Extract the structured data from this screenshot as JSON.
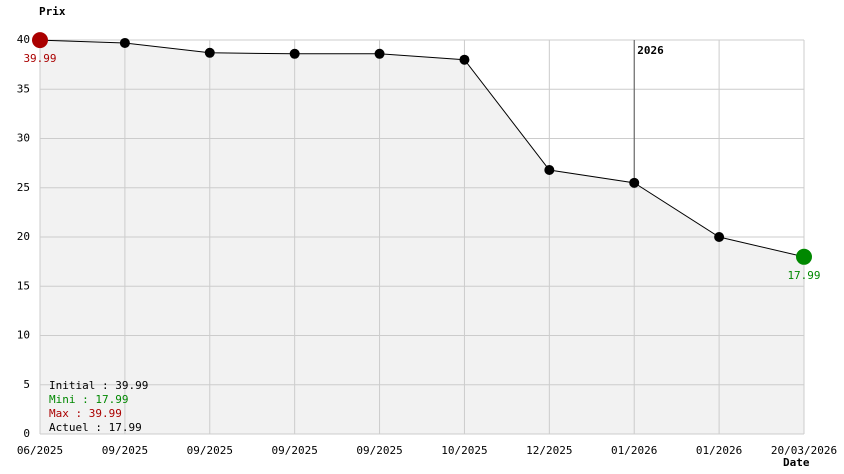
{
  "chart_data": {
    "type": "line",
    "y_label": "Prix",
    "x_label": "Date",
    "categories": [
      "06/2025",
      "09/2025",
      "09/2025",
      "09/2025",
      "09/2025",
      "10/2025",
      "12/2025",
      "01/2026",
      "01/2026",
      "20/03/2026"
    ],
    "values": [
      39.99,
      39.7,
      38.7,
      38.6,
      38.6,
      38.0,
      26.8,
      25.5,
      20.0,
      17.99
    ],
    "value_labels": [
      "39.99",
      null,
      null,
      null,
      null,
      null,
      null,
      null,
      null,
      "17.99"
    ],
    "point_colors": [
      "#aa0000",
      "#000000",
      "#000000",
      "#000000",
      "#000000",
      "#000000",
      "#000000",
      "#000000",
      "#000000",
      "#008800"
    ],
    "line_color": "#000000",
    "area_color": "#f2f2f2",
    "ylim": [
      0,
      40
    ],
    "yticks": [
      0,
      5,
      10,
      15,
      20,
      25,
      30,
      35,
      40
    ],
    "grid": true,
    "year_marker": "2026",
    "summary": [
      {
        "text": "Initial : 39.99",
        "color": "#000000"
      },
      {
        "text": "Mini : 17.99",
        "color": "#008800"
      },
      {
        "text": "Max : 39.99",
        "color": "#aa0000"
      },
      {
        "text": "Actuel : 17.99",
        "color": "#000000"
      }
    ]
  }
}
